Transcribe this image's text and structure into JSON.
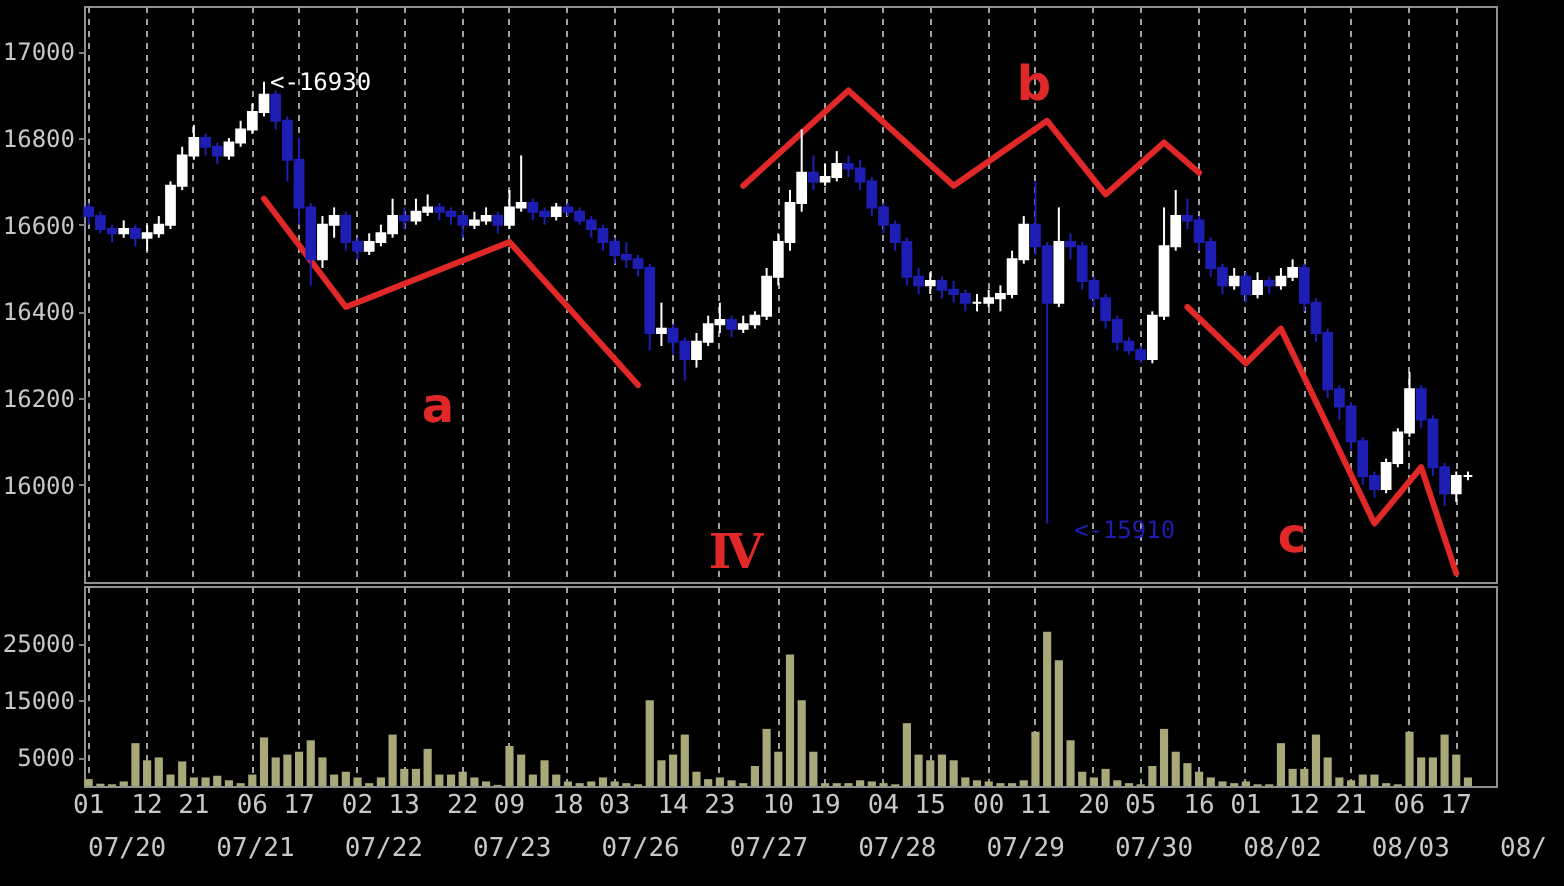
{
  "chart_data": [
    {
      "type": "candlestick",
      "tick_labels": "y",
      "grid": "x",
      "categories": [
        "01",
        null,
        null,
        null,
        null,
        "12",
        null,
        null,
        null,
        "21",
        null,
        null,
        null,
        null,
        "06",
        null,
        null,
        null,
        "17",
        null,
        null,
        null,
        null,
        "02",
        null,
        null,
        null,
        "13",
        null,
        null,
        null,
        null,
        "22",
        null,
        null,
        null,
        "09",
        null,
        null,
        null,
        null,
        "18",
        null,
        null,
        null,
        "03",
        null,
        null,
        null,
        null,
        "14",
        null,
        null,
        null,
        "23",
        null,
        null,
        null,
        null,
        "10",
        null,
        null,
        null,
        "19",
        null,
        null,
        null,
        null,
        "04",
        null,
        null,
        null,
        "15",
        null,
        null,
        null,
        null,
        "00",
        null,
        null,
        null,
        "11",
        null,
        null,
        null,
        null,
        "20",
        null,
        null,
        null,
        "05",
        null,
        null,
        null,
        null,
        "16",
        null,
        null,
        null,
        "01",
        null,
        null,
        null,
        null,
        "12",
        null,
        null,
        null,
        "21",
        null,
        null,
        null,
        null,
        "06",
        null,
        null,
        null,
        "17",
        null,
        null,
        null
      ],
      "ylim": [
        15775,
        17105
      ],
      "yticks": [
        16000,
        16200,
        16400,
        16600,
        16800,
        17000
      ],
      "ohlc": [
        [
          16640,
          16650,
          16600,
          16620
        ],
        [
          16620,
          16630,
          16580,
          16590
        ],
        [
          16590,
          16600,
          16560,
          16580
        ],
        [
          16580,
          16610,
          16570,
          16590
        ],
        [
          16590,
          16600,
          16550,
          16570
        ],
        [
          16570,
          16600,
          16540,
          16580
        ],
        [
          16580,
          16620,
          16570,
          16600
        ],
        [
          16600,
          16700,
          16590,
          16690
        ],
        [
          16690,
          16780,
          16680,
          16760
        ],
        [
          16760,
          16830,
          16750,
          16800
        ],
        [
          16800,
          16810,
          16760,
          16780
        ],
        [
          16780,
          16790,
          16740,
          16760
        ],
        [
          16760,
          16800,
          16750,
          16790
        ],
        [
          16790,
          16840,
          16780,
          16820
        ],
        [
          16820,
          16880,
          16810,
          16860
        ],
        [
          16860,
          16930,
          16850,
          16900
        ],
        [
          16900,
          16910,
          16820,
          16840
        ],
        [
          16840,
          16850,
          16700,
          16750
        ],
        [
          16750,
          16800,
          16600,
          16640
        ],
        [
          16640,
          16650,
          16460,
          16520
        ],
        [
          16520,
          16620,
          16500,
          16600
        ],
        [
          16600,
          16640,
          16570,
          16620
        ],
        [
          16620,
          16630,
          16540,
          16560
        ],
        [
          16560,
          16570,
          16520,
          16540
        ],
        [
          16540,
          16580,
          16530,
          16560
        ],
        [
          16560,
          16600,
          16550,
          16580
        ],
        [
          16580,
          16660,
          16570,
          16620
        ],
        [
          16620,
          16640,
          16590,
          16610
        ],
        [
          16610,
          16660,
          16600,
          16630
        ],
        [
          16630,
          16670,
          16620,
          16640
        ],
        [
          16640,
          16650,
          16610,
          16630
        ],
        [
          16630,
          16640,
          16600,
          16620
        ],
        [
          16620,
          16630,
          16570,
          16600
        ],
        [
          16600,
          16630,
          16590,
          16610
        ],
        [
          16610,
          16640,
          16600,
          16620
        ],
        [
          16620,
          16630,
          16580,
          16600
        ],
        [
          16600,
          16680,
          16590,
          16640
        ],
        [
          16640,
          16760,
          16630,
          16650
        ],
        [
          16650,
          16660,
          16610,
          16630
        ],
        [
          16630,
          16640,
          16600,
          16620
        ],
        [
          16620,
          16650,
          16610,
          16640
        ],
        [
          16640,
          16650,
          16620,
          16630
        ],
        [
          16630,
          16640,
          16600,
          16610
        ],
        [
          16610,
          16620,
          16570,
          16590
        ],
        [
          16590,
          16600,
          16540,
          16560
        ],
        [
          16560,
          16570,
          16510,
          16530
        ],
        [
          16530,
          16560,
          16500,
          16520
        ],
        [
          16520,
          16530,
          16480,
          16500
        ],
        [
          16500,
          16510,
          16310,
          16350
        ],
        [
          16350,
          16420,
          16320,
          16360
        ],
        [
          16360,
          16370,
          16300,
          16330
        ],
        [
          16330,
          16340,
          16240,
          16290
        ],
        [
          16290,
          16350,
          16270,
          16330
        ],
        [
          16330,
          16390,
          16320,
          16370
        ],
        [
          16370,
          16420,
          16350,
          16380
        ],
        [
          16380,
          16390,
          16340,
          16360
        ],
        [
          16360,
          16390,
          16350,
          16370
        ],
        [
          16370,
          16400,
          16360,
          16390
        ],
        [
          16390,
          16500,
          16380,
          16480
        ],
        [
          16480,
          16580,
          16460,
          16560
        ],
        [
          16560,
          16680,
          16540,
          16650
        ],
        [
          16650,
          16820,
          16630,
          16720
        ],
        [
          16720,
          16760,
          16680,
          16700
        ],
        [
          16700,
          16740,
          16690,
          16710
        ],
        [
          16710,
          16770,
          16700,
          16740
        ],
        [
          16740,
          16760,
          16710,
          16730
        ],
        [
          16730,
          16750,
          16680,
          16700
        ],
        [
          16700,
          16710,
          16620,
          16640
        ],
        [
          16640,
          16650,
          16580,
          16600
        ],
        [
          16600,
          16610,
          16540,
          16560
        ],
        [
          16560,
          16570,
          16460,
          16480
        ],
        [
          16480,
          16500,
          16440,
          16460
        ],
        [
          16460,
          16490,
          16440,
          16470
        ],
        [
          16470,
          16480,
          16430,
          16450
        ],
        [
          16450,
          16470,
          16420,
          16440
        ],
        [
          16440,
          16450,
          16400,
          16420
        ],
        [
          16420,
          16440,
          16400,
          16420
        ],
        [
          16420,
          16450,
          16410,
          16430
        ],
        [
          16430,
          16460,
          16400,
          16440
        ],
        [
          16440,
          16540,
          16430,
          16520
        ],
        [
          16520,
          16620,
          16510,
          16600
        ],
        [
          16600,
          16700,
          16530,
          16550
        ],
        [
          16550,
          16560,
          15910,
          16420
        ],
        [
          16420,
          16640,
          16410,
          16560
        ],
        [
          16560,
          16580,
          16520,
          16550
        ],
        [
          16550,
          16560,
          16450,
          16470
        ],
        [
          16470,
          16480,
          16410,
          16430
        ],
        [
          16430,
          16440,
          16360,
          16380
        ],
        [
          16380,
          16390,
          16310,
          16330
        ],
        [
          16330,
          16340,
          16300,
          16310
        ],
        [
          16310,
          16320,
          16280,
          16290
        ],
        [
          16290,
          16400,
          16280,
          16390
        ],
        [
          16390,
          16640,
          16380,
          16550
        ],
        [
          16550,
          16680,
          16540,
          16620
        ],
        [
          16620,
          16660,
          16590,
          16610
        ],
        [
          16610,
          16620,
          16540,
          16560
        ],
        [
          16560,
          16570,
          16480,
          16500
        ],
        [
          16500,
          16510,
          16440,
          16460
        ],
        [
          16460,
          16500,
          16450,
          16480
        ],
        [
          16480,
          16490,
          16420,
          16440
        ],
        [
          16440,
          16490,
          16430,
          16470
        ],
        [
          16470,
          16480,
          16440,
          16460
        ],
        [
          16460,
          16500,
          16450,
          16480
        ],
        [
          16480,
          16520,
          16470,
          16500
        ],
        [
          16500,
          16510,
          16400,
          16420
        ],
        [
          16420,
          16430,
          16330,
          16350
        ],
        [
          16350,
          16360,
          16200,
          16220
        ],
        [
          16220,
          16230,
          16150,
          16180
        ],
        [
          16180,
          16190,
          16080,
          16100
        ],
        [
          16100,
          16110,
          16000,
          16020
        ],
        [
          16020,
          16030,
          15970,
          15990
        ],
        [
          15990,
          16060,
          15980,
          16050
        ],
        [
          16050,
          16130,
          16040,
          16120
        ],
        [
          16120,
          16260,
          16110,
          16220
        ],
        [
          16220,
          16230,
          16130,
          16150
        ],
        [
          16150,
          16160,
          16020,
          16040
        ],
        [
          16040,
          16050,
          15950,
          15980
        ],
        [
          15980,
          16030,
          15960,
          16020
        ],
        [
          16020,
          16030,
          16010,
          16020
        ],
        null,
        null
      ],
      "colors": [
        "#1e1eb4",
        "#1e1eb4",
        "#1e1eb4",
        "#ffffff",
        "#1e1eb4",
        "#ffffff",
        "#ffffff",
        "#ffffff",
        "#ffffff",
        "#ffffff",
        "#1e1eb4",
        "#1e1eb4",
        "#ffffff",
        "#ffffff",
        "#ffffff",
        "#ffffff",
        "#1e1eb4",
        "#1e1eb4",
        "#1e1eb4",
        "#1e1eb4",
        "#ffffff",
        "#ffffff",
        "#1e1eb4",
        "#1e1eb4",
        "#ffffff",
        "#ffffff",
        "#ffffff",
        "#1e1eb4",
        "#ffffff",
        "#ffffff",
        "#1e1eb4",
        "#1e1eb4",
        "#1e1eb4",
        "#ffffff",
        "#ffffff",
        "#1e1eb4",
        "#ffffff",
        "#ffffff",
        "#1e1eb4",
        "#1e1eb4",
        "#ffffff",
        "#1e1eb4",
        "#1e1eb4",
        "#1e1eb4",
        "#1e1eb4",
        "#1e1eb4",
        "#1e1eb4",
        "#1e1eb4",
        "#1e1eb4",
        "#ffffff",
        "#1e1eb4",
        "#1e1eb4",
        "#ffffff",
        "#ffffff",
        "#ffffff",
        "#1e1eb4",
        "#ffffff",
        "#ffffff",
        "#ffffff",
        "#ffffff",
        "#ffffff",
        "#ffffff",
        "#1e1eb4",
        "#ffffff",
        "#ffffff",
        "#1e1eb4",
        "#1e1eb4",
        "#1e1eb4",
        "#1e1eb4",
        "#1e1eb4",
        "#1e1eb4",
        "#1e1eb4",
        "#ffffff",
        "#1e1eb4",
        "#1e1eb4",
        "#1e1eb4",
        "#ffffff",
        "#ffffff",
        "#ffffff",
        "#ffffff",
        "#ffffff",
        "#1e1eb4",
        "#1e1eb4",
        "#ffffff",
        "#1e1eb4",
        "#1e1eb4",
        "#1e1eb4",
        "#1e1eb4",
        "#1e1eb4",
        "#1e1eb4",
        "#1e1eb4",
        "#ffffff",
        "#ffffff",
        "#ffffff",
        "#1e1eb4",
        "#1e1eb4",
        "#1e1eb4",
        "#1e1eb4",
        "#ffffff",
        "#1e1eb4",
        "#ffffff",
        "#1e1eb4",
        "#ffffff",
        "#ffffff",
        "#1e1eb4",
        "#1e1eb4",
        "#1e1eb4",
        "#1e1eb4",
        "#1e1eb4",
        "#1e1eb4",
        "#1e1eb4",
        "#ffffff",
        "#ffffff",
        "#ffffff",
        "#1e1eb4",
        "#1e1eb4",
        "#1e1eb4",
        "#ffffff",
        "#ffffff",
        null,
        null
      ],
      "series": [
        {
          "type": "line",
          "color": "#e02828",
          "values": [
            null,
            null,
            null,
            null,
            null,
            null,
            null,
            null,
            null,
            null,
            null,
            null,
            null,
            null,
            null,
            16660,
            null,
            null,
            null,
            null,
            null,
            null,
            16410,
            null,
            null,
            null,
            null,
            null,
            null,
            null,
            null,
            null,
            null,
            null,
            null,
            null,
            16560,
            null,
            null,
            null,
            null,
            null,
            null,
            null,
            null,
            null,
            null,
            16230,
            null,
            null,
            null,
            null,
            null,
            null,
            null,
            null,
            null,
            null,
            null,
            null,
            null,
            null,
            null,
            null,
            null,
            null,
            null,
            null,
            null,
            null,
            null,
            null,
            null,
            null,
            null,
            null,
            null,
            null,
            null,
            null,
            null,
            null,
            null,
            null,
            null,
            null,
            null,
            null,
            null,
            null,
            null,
            null,
            null,
            null,
            null,
            null,
            null,
            null,
            null,
            null,
            null,
            null,
            null,
            null,
            null,
            null,
            null,
            null,
            null,
            null,
            null,
            null,
            null,
            null,
            null,
            null,
            null,
            null,
            null,
            null,
            null
          ]
        },
        {
          "type": "line",
          "color": "#e02828",
          "values": [
            null,
            null,
            null,
            null,
            null,
            null,
            null,
            null,
            null,
            null,
            null,
            null,
            null,
            null,
            null,
            null,
            null,
            null,
            null,
            null,
            null,
            null,
            null,
            null,
            null,
            null,
            null,
            null,
            null,
            null,
            null,
            null,
            null,
            null,
            null,
            null,
            null,
            null,
            null,
            null,
            null,
            null,
            null,
            null,
            null,
            null,
            null,
            null,
            null,
            null,
            null,
            null,
            null,
            null,
            null,
            null,
            16690,
            null,
            null,
            null,
            null,
            null,
            null,
            null,
            null,
            16910,
            null,
            null,
            null,
            null,
            null,
            null,
            null,
            null,
            16690,
            null,
            null,
            null,
            null,
            null,
            null,
            null,
            16840,
            null,
            null,
            null,
            null,
            16670,
            null,
            null,
            null,
            null,
            16790,
            null,
            null,
            16720,
            null,
            null,
            null,
            null,
            null,
            null,
            null,
            null,
            null,
            null,
            null,
            null,
            null,
            null,
            null,
            null,
            null,
            null,
            null,
            null,
            null,
            null,
            null,
            null,
            null
          ]
        },
        {
          "type": "line",
          "color": "#e02828",
          "values": [
            null,
            null,
            null,
            null,
            null,
            null,
            null,
            null,
            null,
            null,
            null,
            null,
            null,
            null,
            null,
            null,
            null,
            null,
            null,
            null,
            null,
            null,
            null,
            null,
            null,
            null,
            null,
            null,
            null,
            null,
            null,
            null,
            null,
            null,
            null,
            null,
            null,
            null,
            null,
            null,
            null,
            null,
            null,
            null,
            null,
            null,
            null,
            null,
            null,
            null,
            null,
            null,
            null,
            null,
            null,
            null,
            null,
            null,
            null,
            null,
            null,
            null,
            null,
            null,
            null,
            null,
            null,
            null,
            null,
            null,
            null,
            null,
            null,
            null,
            null,
            null,
            null,
            null,
            null,
            null,
            null,
            null,
            null,
            null,
            null,
            null,
            null,
            null,
            null,
            null,
            null,
            null,
            null,
            null,
            16410,
            null,
            null,
            null,
            null,
            16280,
            null,
            null,
            16360,
            null,
            null,
            null,
            null,
            null,
            null,
            null,
            15910,
            null,
            null,
            null,
            16040,
            null,
            null,
            15795,
            null,
            null,
            null
          ]
        }
      ],
      "annotations": [
        "<-16930",
        "<-15910",
        "a",
        "b",
        "c",
        "Ⅳ"
      ]
    },
    {
      "type": "bar",
      "grid": "x",
      "color": "#a8a878",
      "categories": [
        "01",
        null,
        null,
        null,
        null,
        "12",
        null,
        null,
        null,
        "21",
        null,
        null,
        null,
        null,
        "06",
        null,
        null,
        null,
        "17",
        null,
        null,
        null,
        null,
        "02",
        null,
        null,
        null,
        "13",
        null,
        null,
        null,
        null,
        "22",
        null,
        null,
        null,
        "09",
        null,
        null,
        null,
        null,
        "18",
        null,
        null,
        null,
        "03",
        null,
        null,
        null,
        null,
        "14",
        null,
        null,
        null,
        "23",
        null,
        null,
        null,
        null,
        "10",
        null,
        null,
        null,
        "19",
        null,
        null,
        null,
        null,
        "04",
        null,
        null,
        null,
        "15",
        null,
        null,
        null,
        null,
        "00",
        null,
        null,
        null,
        "11",
        null,
        null,
        null,
        null,
        "20",
        null,
        null,
        null,
        "05",
        null,
        null,
        null,
        null,
        "16",
        null,
        null,
        null,
        "01",
        null,
        null,
        null,
        null,
        "12",
        null,
        null,
        null,
        "21",
        null,
        null,
        null,
        null,
        "06",
        null,
        null,
        null,
        "17",
        null,
        null,
        null
      ],
      "ylim": [
        0,
        35000
      ],
      "yticks": [
        5000,
        15000,
        25000
      ],
      "values": [
        1200,
        400,
        300,
        800,
        7500,
        4500,
        5000,
        2000,
        4300,
        1500,
        1500,
        1800,
        1000,
        500,
        2000,
        8500,
        5000,
        5500,
        6000,
        8000,
        5000,
        2000,
        2500,
        1500,
        500,
        1500,
        9000,
        3000,
        3000,
        6500,
        2000,
        2000,
        2500,
        1500,
        800,
        200,
        7000,
        5500,
        2000,
        4500,
        2000,
        800,
        500,
        800,
        1500,
        800,
        500,
        300,
        15000,
        4500,
        5500,
        9000,
        2500,
        1200,
        1500,
        1000,
        500,
        3500,
        10000,
        6000,
        23000,
        15000,
        6000,
        500,
        500,
        500,
        1000,
        800,
        500,
        300,
        11000,
        5500,
        4500,
        5500,
        4500,
        1500,
        1000,
        800,
        500,
        500,
        1000,
        9500,
        27000,
        22000,
        8000,
        2500,
        1500,
        3000,
        1000,
        500,
        300,
        3500,
        10000,
        6000,
        4000,
        2500,
        1500,
        800,
        500,
        800,
        300,
        300,
        7500,
        3000,
        3000,
        9000,
        5000,
        1500,
        1000,
        2000,
        2000,
        500,
        300,
        9500,
        5000,
        5000,
        9000,
        5500,
        1500,
        null,
        null
      ],
      "annotations": [
        "07/20",
        "07/21",
        "07/22",
        "07/23",
        "07/26",
        "07/27",
        "07/28",
        "07/29",
        "07/30",
        "08/02",
        "08/03",
        "08/"
      ]
    }
  ]
}
